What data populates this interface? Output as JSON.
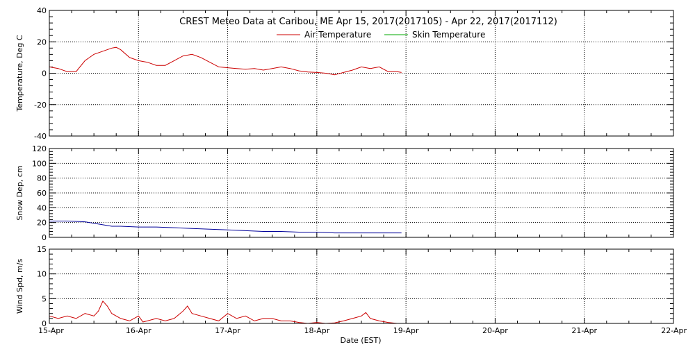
{
  "chart_data": {
    "type": "line",
    "title": "CREST Meteo Data at Caribou, ME   Apr 15, 2017(2017105) - Apr 22, 2017(2017112)",
    "xlabel": "Date (EST)",
    "x_ticks": [
      "15-Apr",
      "16-Apr",
      "17-Apr",
      "18-Apr",
      "19-Apr",
      "20-Apr",
      "21-Apr",
      "22-Apr"
    ],
    "x_range_days": [
      0,
      7
    ],
    "legend": {
      "placement": "top-center",
      "entries": [
        {
          "name": "Air Temperature",
          "color": "#cc0000"
        },
        {
          "name": "Skin Temperature",
          "color": "#00aa00"
        }
      ]
    },
    "panels": [
      {
        "id": "temperature",
        "ylabel": "Temperature, Deg C",
        "ylim": [
          -40,
          40
        ],
        "y_ticks": [
          -40,
          -20,
          0,
          20,
          40
        ],
        "grid": true,
        "series": [
          {
            "name": "Air Temperature",
            "color": "#cc0000",
            "x": [
              0,
              0.1,
              0.2,
              0.3,
              0.4,
              0.5,
              0.6,
              0.7,
              0.75,
              0.8,
              0.9,
              1.0,
              1.1,
              1.2,
              1.3,
              1.4,
              1.5,
              1.6,
              1.7,
              1.8,
              1.9,
              2.0,
              2.1,
              2.2,
              2.3,
              2.4,
              2.5,
              2.6,
              2.7,
              2.8,
              2.9,
              3.0,
              3.1,
              3.2,
              3.3,
              3.4,
              3.5,
              3.6,
              3.7,
              3.8,
              3.9,
              3.95
            ],
            "y": [
              4,
              3,
              1,
              1,
              8,
              12,
              14,
              16,
              16.5,
              15,
              10,
              8,
              7,
              5,
              5,
              8,
              11,
              12,
              10,
              7,
              4,
              3.5,
              3,
              2.5,
              3,
              2,
              3,
              4,
              3,
              1.5,
              0.8,
              0.5,
              0,
              -1,
              0.5,
              2,
              4,
              3,
              4,
              1,
              1,
              0.5
            ]
          },
          {
            "name": "Skin Temperature",
            "color": "#00aa00",
            "x": [],
            "y": []
          }
        ]
      },
      {
        "id": "snow-depth",
        "ylabel": "Snow Dep, cm",
        "ylim": [
          0,
          120
        ],
        "y_ticks": [
          0,
          20,
          40,
          60,
          80,
          100,
          120
        ],
        "grid": true,
        "series": [
          {
            "name": "Snow Depth",
            "color": "#000099",
            "x": [
              0,
              0.2,
              0.4,
              0.6,
              0.7,
              0.8,
              1.0,
              1.2,
              1.4,
              1.6,
              1.8,
              2.0,
              2.2,
              2.4,
              2.6,
              2.8,
              3.0,
              3.2,
              3.4,
              3.6,
              3.8,
              3.95
            ],
            "y": [
              22,
              22,
              21,
              17,
              15,
              15,
              14,
              14,
              13,
              12,
              11,
              10,
              9,
              8,
              8,
              7,
              7,
              6,
              6,
              6,
              6,
              6
            ]
          }
        ]
      },
      {
        "id": "wind-speed",
        "ylabel": "Wind Spd, m/s",
        "ylim": [
          0,
          15
        ],
        "y_ticks": [
          0,
          5,
          10,
          15
        ],
        "grid": true,
        "series": [
          {
            "name": "Wind Speed",
            "color": "#cc0000",
            "x": [
              0,
              0.1,
              0.2,
              0.3,
              0.4,
              0.5,
              0.55,
              0.6,
              0.65,
              0.7,
              0.8,
              0.9,
              1.0,
              1.05,
              1.1,
              1.2,
              1.3,
              1.4,
              1.5,
              1.55,
              1.6,
              1.7,
              1.8,
              1.9,
              2.0,
              2.05,
              2.1,
              2.2,
              2.3,
              2.4,
              2.5,
              2.6,
              2.7,
              2.8,
              2.9,
              3.0,
              3.1,
              3.2,
              3.3,
              3.4,
              3.5,
              3.55,
              3.6,
              3.7,
              3.8,
              3.9,
              3.95
            ],
            "y": [
              1.5,
              1.0,
              1.5,
              1.0,
              2.0,
              1.5,
              2.5,
              4.5,
              3.5,
              2.0,
              1.0,
              0.5,
              1.5,
              0.3,
              0.5,
              1.0,
              0.5,
              1.0,
              2.5,
              3.5,
              2.0,
              1.5,
              1.0,
              0.5,
              2.0,
              1.5,
              1.0,
              1.5,
              0.5,
              1.0,
              1.0,
              0.5,
              0.5,
              0.2,
              0,
              0.2,
              0,
              0.1,
              0.5,
              1.0,
              1.5,
              2.2,
              1.0,
              0.5,
              0.2,
              0,
              0
            ]
          }
        ]
      }
    ]
  }
}
